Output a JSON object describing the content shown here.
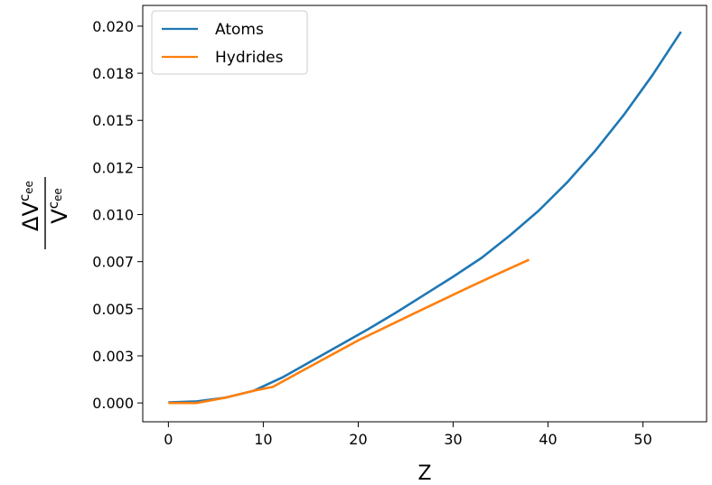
{
  "chart_data": {
    "type": "line",
    "xlabel": "Z",
    "ylabel": "ΔVᶜₑₑ / Vᶜₑₑ",
    "ylabel_num": "ΔV",
    "ylabel_den": "V",
    "ylabel_sup": "c",
    "ylabel_sub": "ee",
    "xlim": [
      -2.7,
      56.7
    ],
    "ylim": [
      -0.001,
      0.0211
    ],
    "x_ticks": [
      0,
      10,
      20,
      30,
      40,
      50
    ],
    "x_tick_labels": [
      "0",
      "10",
      "20",
      "30",
      "40",
      "50"
    ],
    "y_ticks": [
      0.0,
      0.0025,
      0.005,
      0.0075,
      0.01,
      0.0125,
      0.015,
      0.0175,
      0.02
    ],
    "y_tick_labels": [
      "0.000",
      "0.003",
      "0.005",
      "0.007",
      "0.010",
      "0.012",
      "0.015",
      "0.018",
      "0.020"
    ],
    "grid": false,
    "legend_position": "top-left",
    "series": [
      {
        "name": "Atoms",
        "color": "#1f77b4",
        "x": [
          0,
          3,
          6,
          9,
          12,
          15,
          18,
          21,
          24,
          27,
          30,
          33,
          36,
          39,
          42,
          45,
          48,
          51,
          54
        ],
        "y": [
          3e-05,
          8e-05,
          0.00028,
          0.00065,
          0.00135,
          0.0022,
          0.00305,
          0.0039,
          0.0048,
          0.00575,
          0.0067,
          0.0077,
          0.0089,
          0.0102,
          0.0117,
          0.0134,
          0.0153,
          0.0174,
          0.0197
        ]
      },
      {
        "name": "Hydrides",
        "color": "#ff7f0e",
        "x": [
          0,
          3,
          6,
          9,
          11,
          14,
          17,
          20,
          23,
          26,
          29,
          32,
          35,
          38
        ],
        "y": [
          0.0,
          0.0,
          0.00028,
          0.00065,
          0.00085,
          0.00168,
          0.0025,
          0.00332,
          0.00405,
          0.00478,
          0.0055,
          0.00622,
          0.00692,
          0.0076
        ]
      }
    ]
  }
}
